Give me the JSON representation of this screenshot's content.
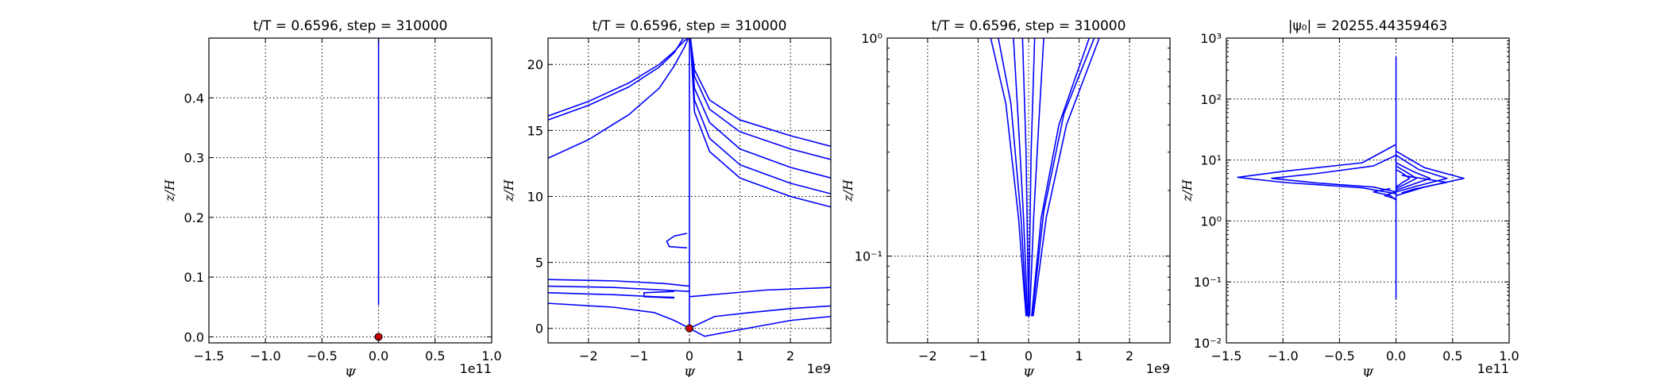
{
  "chart_data": [
    {
      "type": "line",
      "title": "t/T = 0.6596, step = 310000",
      "xlabel": "Ψ",
      "ylabel": "z/H",
      "x_offset_label": "1e11",
      "xlim": [
        -1.5,
        1.0
      ],
      "ylim": [
        -0.01,
        0.5
      ],
      "xscale": "linear",
      "yscale": "linear",
      "xticks": [
        -1.5,
        -1.0,
        -0.5,
        0.0,
        0.5,
        1.0
      ],
      "xtick_labels": [
        "−1.5",
        "−1.0",
        "−0.5",
        "0.0",
        "0.5",
        "1.0"
      ],
      "yticks": [
        0.0,
        0.1,
        0.2,
        0.3,
        0.4
      ],
      "ytick_labels": [
        "0.0",
        "0.1",
        "0.2",
        "0.3",
        "0.4"
      ],
      "grid": true,
      "series": [
        {
          "color": "#0000ff",
          "x": [
            0.0,
            0.0
          ],
          "y": [
            0.053,
            0.5
          ]
        }
      ],
      "markers": [
        {
          "x": 0.0,
          "y": 0.0,
          "color": "#cc0000"
        }
      ]
    },
    {
      "type": "line",
      "title": "t/T = 0.6596, step = 310000",
      "xlabel": "Ψ",
      "ylabel": "z/H",
      "x_offset_label": "1e9",
      "xlim": [
        -2.8,
        2.8
      ],
      "ylim": [
        -1.1,
        22.0
      ],
      "xscale": "linear",
      "yscale": "linear",
      "xticks": [
        -2,
        -1,
        0,
        1,
        2
      ],
      "xtick_labels": [
        "−2",
        "−1",
        "0",
        "1",
        "2"
      ],
      "yticks": [
        0,
        5,
        10,
        15,
        20
      ],
      "ytick_labels": [
        "0",
        "5",
        "10",
        "15",
        "20"
      ],
      "grid": true,
      "series": [
        {
          "color": "#0000ff",
          "x": [
            -2.8,
            -2.0,
            -1.2,
            -0.6,
            -0.3,
            -0.1,
            -0.03
          ],
          "y": [
            16.1,
            17.2,
            18.6,
            20.0,
            21.0,
            21.8,
            22.0
          ]
        },
        {
          "color": "#0000ff",
          "x": [
            -2.8,
            -2.0,
            -1.2,
            -0.6,
            -0.3,
            -0.12
          ],
          "y": [
            15.8,
            16.9,
            18.3,
            19.8,
            20.9,
            22.0
          ]
        },
        {
          "color": "#0000ff",
          "x": [
            -2.8,
            -2.0,
            -1.2,
            -0.6,
            -0.3,
            -0.1,
            -0.02
          ],
          "y": [
            12.9,
            14.3,
            16.2,
            18.2,
            19.9,
            21.3,
            22.0
          ]
        },
        {
          "color": "#0000ff",
          "x": [
            0.0,
            0.0
          ],
          "y": [
            22.0,
            2.6
          ]
        },
        {
          "color": "#0000ff",
          "x": [
            0.0,
            0.0
          ],
          "y": [
            2.6,
            0.0
          ]
        },
        {
          "color": "#0000ff",
          "x": [
            0.02,
            0.1,
            0.4,
            1.0,
            2.0,
            2.8
          ],
          "y": [
            22.0,
            19.6,
            17.3,
            15.8,
            14.6,
            13.8
          ]
        },
        {
          "color": "#0000ff",
          "x": [
            0.02,
            0.1,
            0.4,
            1.0,
            2.0,
            2.8
          ],
          "y": [
            22.0,
            19.1,
            16.6,
            14.9,
            13.6,
            12.8
          ]
        },
        {
          "color": "#0000ff",
          "x": [
            0.02,
            0.1,
            0.4,
            1.0,
            2.0,
            2.8
          ],
          "y": [
            22.0,
            18.2,
            15.6,
            13.6,
            12.2,
            11.4
          ]
        },
        {
          "color": "#0000ff",
          "x": [
            0.02,
            0.1,
            0.4,
            1.0,
            2.0,
            2.8
          ],
          "y": [
            22.0,
            17.3,
            14.4,
            12.4,
            11.0,
            10.2
          ]
        },
        {
          "color": "#0000ff",
          "x": [
            0.02,
            0.1,
            0.4,
            1.0,
            2.0,
            2.8
          ],
          "y": [
            22.0,
            16.4,
            13.4,
            11.4,
            10.0,
            9.2
          ]
        },
        {
          "color": "#0000ff",
          "x": [
            -0.05,
            -0.4,
            -0.45,
            -0.3,
            -0.05
          ],
          "y": [
            6.1,
            6.2,
            6.6,
            7.0,
            7.2
          ]
        },
        {
          "color": "#0000ff",
          "x": [
            -2.8,
            -1.5,
            -0.5,
            0.0
          ],
          "y": [
            3.7,
            3.6,
            3.4,
            3.2
          ]
        },
        {
          "color": "#0000ff",
          "x": [
            -2.8,
            -1.5,
            -0.5,
            0.0
          ],
          "y": [
            3.2,
            3.1,
            2.9,
            2.8
          ]
        },
        {
          "color": "#0000ff",
          "x": [
            -2.8,
            -1.5,
            -0.7,
            -0.3
          ],
          "y": [
            2.7,
            2.55,
            2.4,
            2.35
          ]
        },
        {
          "color": "#0000ff",
          "x": [
            -0.3,
            -0.9,
            -0.9,
            -0.3
          ],
          "y": [
            2.3,
            2.4,
            2.7,
            2.8
          ]
        },
        {
          "color": "#0000ff",
          "x": [
            -2.8,
            -1.5,
            -0.7,
            -0.3,
            0.0
          ],
          "y": [
            1.9,
            1.6,
            1.2,
            0.6,
            0.0
          ]
        },
        {
          "color": "#0000ff",
          "x": [
            0.0,
            0.3,
            1.0,
            2.0,
            2.8
          ],
          "y": [
            0.0,
            -0.6,
            -0.1,
            0.6,
            0.9
          ]
        },
        {
          "color": "#0000ff",
          "x": [
            0.0,
            0.5,
            1.2,
            2.0,
            2.8
          ],
          "y": [
            0.0,
            0.9,
            1.2,
            1.5,
            1.7
          ]
        },
        {
          "color": "#0000ff",
          "x": [
            0.0,
            0.6,
            1.5,
            2.8
          ],
          "y": [
            2.4,
            2.6,
            2.9,
            3.1
          ]
        }
      ],
      "markers": [
        {
          "x": 0.0,
          "y": 0.0,
          "color": "#cc0000"
        }
      ]
    },
    {
      "type": "line",
      "title": "t/T = 0.6596, step = 310000",
      "xlabel": "Ψ",
      "ylabel": "z/H",
      "x_offset_label": "1e9",
      "xlim": [
        -2.8,
        2.8
      ],
      "ylim": [
        0.04,
        1.0
      ],
      "xscale": "linear",
      "yscale": "log",
      "xticks": [
        -2,
        -1,
        0,
        1,
        2
      ],
      "xtick_labels": [
        "−2",
        "−1",
        "0",
        "1",
        "2"
      ],
      "yticks": [
        0.1,
        1.0
      ],
      "ytick_labels": [
        "10⁻¹",
        "10⁰"
      ],
      "grid": true,
      "series": [
        {
          "color": "#0000ff",
          "x": [
            -0.75,
            -0.45,
            -0.2,
            -0.05
          ],
          "y": [
            1.0,
            0.5,
            0.15,
            0.053
          ]
        },
        {
          "color": "#0000ff",
          "x": [
            -0.6,
            -0.35,
            -0.15,
            -0.04
          ],
          "y": [
            1.0,
            0.5,
            0.15,
            0.053
          ]
        },
        {
          "color": "#0000ff",
          "x": [
            -0.3,
            -0.2,
            -0.1,
            -0.02
          ],
          "y": [
            1.0,
            0.4,
            0.15,
            0.053
          ]
        },
        {
          "color": "#0000ff",
          "x": [
            -0.12,
            -0.05,
            0.0,
            0.05,
            0.12
          ],
          "y": [
            1.0,
            0.3,
            0.053,
            0.3,
            1.0
          ]
        },
        {
          "color": "#0000ff",
          "x": [
            0.3,
            0.2,
            0.1,
            0.02
          ],
          "y": [
            1.0,
            0.4,
            0.15,
            0.053
          ]
        },
        {
          "color": "#0000ff",
          "x": [
            1.2,
            0.6,
            0.25,
            0.06
          ],
          "y": [
            1.0,
            0.4,
            0.15,
            0.053
          ]
        },
        {
          "color": "#0000ff",
          "x": [
            1.4,
            0.75,
            0.35,
            0.09
          ],
          "y": [
            1.0,
            0.4,
            0.15,
            0.053
          ]
        },
        {
          "color": "#0000ff",
          "x": [
            1.3,
            0.7,
            0.3,
            0.07
          ],
          "y": [
            1.0,
            0.45,
            0.16,
            0.053
          ]
        }
      ],
      "markers": []
    },
    {
      "type": "line",
      "title": "|ψ₀| = 20255.44359463",
      "xlabel": "Ψ",
      "ylabel": "z/H",
      "x_offset_label": "1e11",
      "xlim": [
        -1.5,
        1.0
      ],
      "ylim": [
        0.01,
        1000
      ],
      "xscale": "linear",
      "yscale": "log",
      "xticks": [
        -1.5,
        -1.0,
        -0.5,
        0.0,
        0.5,
        1.0
      ],
      "xtick_labels": [
        "−1.5",
        "−1.0",
        "−0.5",
        "0.0",
        "0.5",
        "1.0"
      ],
      "yticks": [
        0.01,
        0.1,
        1,
        10,
        100,
        1000
      ],
      "ytick_labels": [
        "10⁻²",
        "10⁻¹",
        "10⁰",
        "10¹",
        "10²",
        "10³"
      ],
      "grid": true,
      "series": [
        {
          "color": "#0000ff",
          "x": [
            0.0,
            0.0
          ],
          "y": [
            0.053,
            500
          ]
        },
        {
          "color": "#0000ff",
          "x": [
            0.0,
            -0.3,
            -1.0,
            -1.4,
            -1.0,
            -0.3,
            0.0
          ],
          "y": [
            18,
            9,
            6.5,
            5.2,
            4.3,
            3.5,
            2.8
          ]
        },
        {
          "color": "#0000ff",
          "x": [
            0.0,
            -0.2,
            -0.7,
            -1.1,
            -0.7,
            -0.2,
            0.0
          ],
          "y": [
            12,
            8,
            6.0,
            5.0,
            4.2,
            3.6,
            3.0
          ]
        },
        {
          "color": "#0000ff",
          "x": [
            0.0,
            0.25,
            0.6,
            0.25,
            0.0
          ],
          "y": [
            14,
            7.5,
            5.0,
            3.6,
            2.6
          ]
        },
        {
          "color": "#0000ff",
          "x": [
            0.0,
            0.2,
            0.45,
            0.2,
            0.0
          ],
          "y": [
            12,
            7.0,
            5.0,
            3.8,
            3.0
          ]
        },
        {
          "color": "#0000ff",
          "x": [
            0.05,
            0.45,
            0.15,
            0.05
          ],
          "y": [
            5.6,
            4.3,
            3.3,
            2.9
          ]
        },
        {
          "color": "#0000ff",
          "x": [
            0.0,
            0.15,
            0.3,
            0.15,
            0.0
          ],
          "y": [
            9,
            6.5,
            5.0,
            4.0,
            3.2
          ]
        },
        {
          "color": "#0000ff",
          "x": [
            0.0,
            0.1,
            0.18,
            0.1,
            0.0
          ],
          "y": [
            8,
            6.2,
            5.0,
            4.2,
            3.4
          ]
        },
        {
          "color": "#0000ff",
          "x": [
            0.0,
            0.06,
            0.12,
            0.06,
            0.0
          ],
          "y": [
            7,
            6.0,
            5.0,
            4.3,
            3.6
          ]
        },
        {
          "color": "#0000ff",
          "x": [
            -0.05,
            -0.2,
            -0.05,
            0.0
          ],
          "y": [
            3.4,
            3.0,
            2.6,
            2.2
          ]
        },
        {
          "color": "#0000ff",
          "x": [
            0.0,
            -0.1,
            0.0
          ],
          "y": [
            3.0,
            2.6,
            2.3
          ]
        }
      ],
      "markers": []
    }
  ]
}
